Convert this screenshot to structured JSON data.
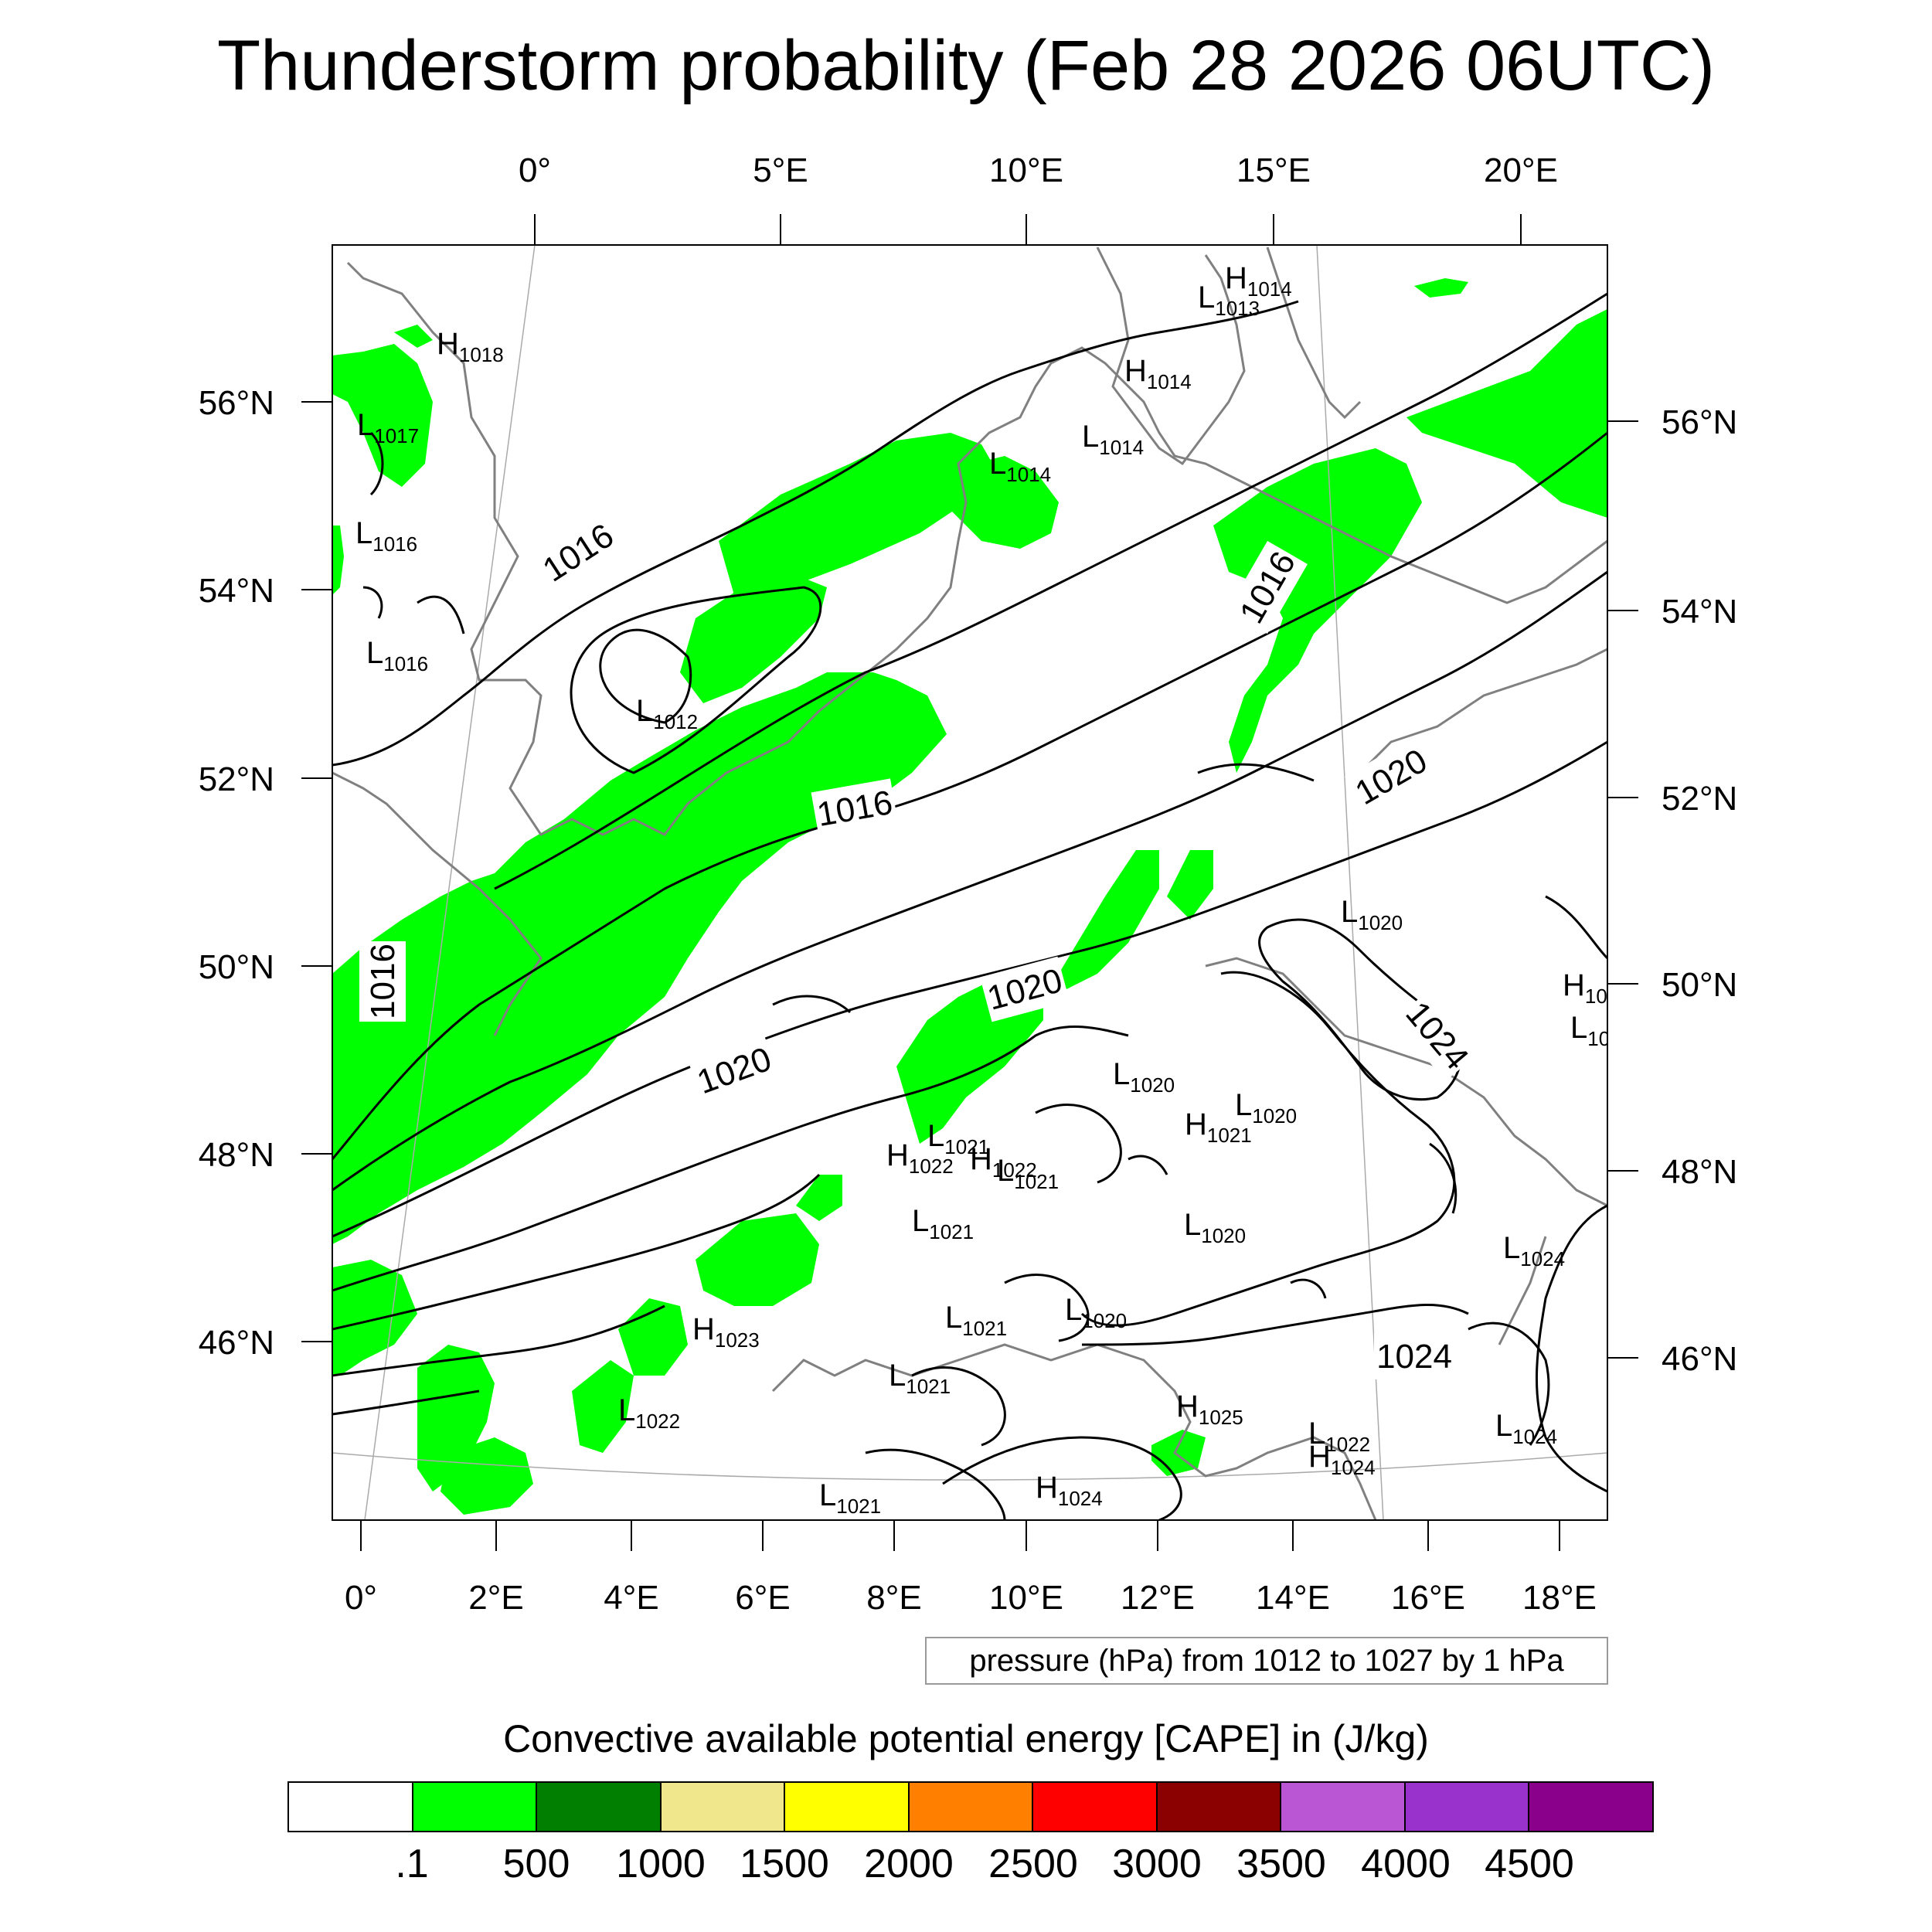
{
  "title": "Thunderstorm probability (Feb 28 2026 06UTC)",
  "axes": {
    "top": [
      "0°",
      "5°E",
      "10°E",
      "15°E",
      "20°E"
    ],
    "bottom": [
      "0°",
      "2°E",
      "4°E",
      "6°E",
      "8°E",
      "10°E",
      "12°E",
      "14°E",
      "16°E",
      "18°E"
    ],
    "left": [
      "56°N",
      "54°N",
      "52°N",
      "50°N",
      "48°N",
      "46°N"
    ],
    "right": [
      "56°N",
      "54°N",
      "52°N",
      "50°N",
      "48°N",
      "46°N"
    ]
  },
  "isobar_labels": [
    "1016",
    "1016",
    "1016",
    "1016",
    "1020",
    "1020",
    "1020",
    "1024",
    "1024"
  ],
  "pressure_centers": [
    {
      "type": "H",
      "value": "1014"
    },
    {
      "type": "L",
      "value": "1013"
    },
    {
      "type": "H",
      "value": "1018"
    },
    {
      "type": "L",
      "value": "1017"
    },
    {
      "type": "H",
      "value": "1014"
    },
    {
      "type": "L",
      "value": "1014"
    },
    {
      "type": "L",
      "value": "1014"
    },
    {
      "type": "L",
      "value": "1016"
    },
    {
      "type": "L",
      "value": "1016"
    },
    {
      "type": "L",
      "value": "1012"
    },
    {
      "type": "L",
      "value": "1020"
    },
    {
      "type": "H",
      "value": "10"
    },
    {
      "type": "L",
      "value": "10"
    },
    {
      "type": "L",
      "value": "1020"
    },
    {
      "type": "L",
      "value": "1020"
    },
    {
      "type": "H",
      "value": "1021"
    },
    {
      "type": "L",
      "value": "1021"
    },
    {
      "type": "H",
      "value": "1022"
    },
    {
      "type": "H",
      "value": "1022"
    },
    {
      "type": "L",
      "value": "1021"
    },
    {
      "type": "L",
      "value": "1021"
    },
    {
      "type": "L",
      "value": "1020"
    },
    {
      "type": "L",
      "value": "1024"
    },
    {
      "type": "L",
      "value": "1020"
    },
    {
      "type": "L",
      "value": "1021"
    },
    {
      "type": "H",
      "value": "1023"
    },
    {
      "type": "L",
      "value": "1021"
    },
    {
      "type": "L",
      "value": "1022"
    },
    {
      "type": "H",
      "value": "1025"
    },
    {
      "type": "L",
      "value": "1022"
    },
    {
      "type": "H",
      "value": "1024"
    },
    {
      "type": "L",
      "value": "1024"
    },
    {
      "type": "L",
      "value": "1021"
    },
    {
      "type": "H",
      "value": "1024"
    }
  ],
  "contour_info": "pressure (hPa) from 1012 to 1027 by 1 hPa",
  "legend": {
    "title": "Convective available potential energy [CAPE] in (J/kg)",
    "colors": [
      "#ffffff",
      "#00ff00",
      "#007f00",
      "#f0e68c",
      "#ffff00",
      "#ff8000",
      "#ff0000",
      "#8b0000",
      "#ba55d3",
      "#9932cc",
      "#8b008b"
    ],
    "labels": [
      ".1",
      "500",
      "1000",
      "1500",
      "2000",
      "2500",
      "3000",
      "3500",
      "4000",
      "4500"
    ]
  },
  "colors": {
    "cape_fill": "#00ff00",
    "coastline": "#808080",
    "isobar": "#000000",
    "graticule": "#aaaaaa"
  }
}
